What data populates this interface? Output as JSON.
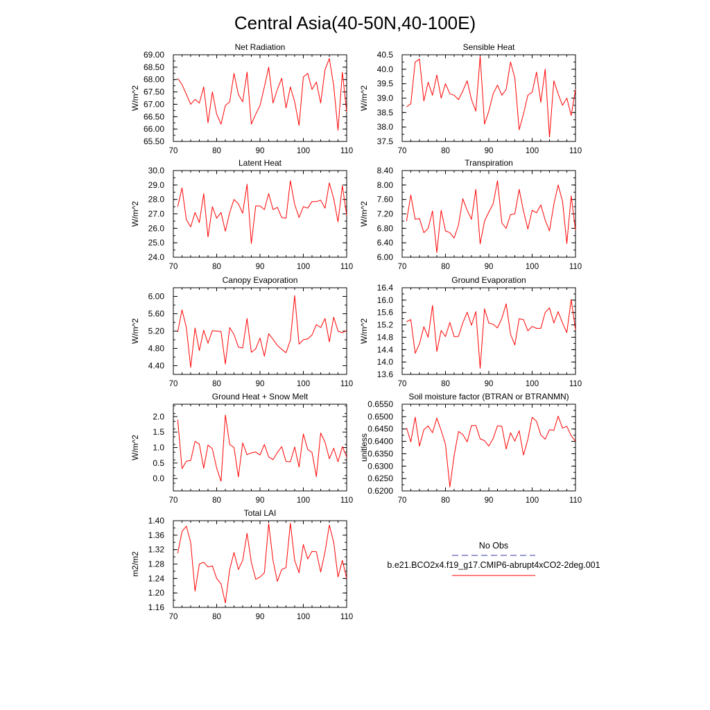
{
  "figure": {
    "title": "Central Asia(40-50N,40-100E)"
  },
  "legend": {
    "obs_label": "No Obs",
    "model_label": "b.e21.BCO2x4.f19_g17.CMIP6-abrupt4xCO2-2deg.001",
    "obs_color": "#3030a0",
    "model_color": "#ff0000"
  },
  "chart_data": [
    {
      "type": "line",
      "title": "Net Radiation",
      "ylabel": "W/m^2",
      "xlim": [
        70,
        110
      ],
      "ylim": [
        65.5,
        69.0
      ],
      "xticks": [
        70,
        80,
        90,
        100,
        110
      ],
      "xtick_labels": [
        "70",
        "80",
        "90",
        "100",
        "110"
      ],
      "yticks": [
        65.5,
        66.0,
        66.5,
        67.0,
        67.5,
        68.0,
        68.5,
        69.0
      ],
      "ytick_labels": [
        "65.50",
        "66.00",
        "66.50",
        "67.00",
        "67.50",
        "68.00",
        "68.50",
        "69.00"
      ],
      "series": [
        {
          "color": "#ff0000",
          "x": [
            71,
            72,
            73,
            74,
            75,
            76,
            77,
            78,
            79,
            80,
            81,
            82,
            83,
            84,
            85,
            86,
            87,
            88,
            89,
            90,
            91,
            92,
            93,
            94,
            95,
            96,
            97,
            98,
            99,
            100,
            101,
            102,
            103,
            104,
            105,
            106,
            107,
            108,
            109,
            110
          ],
          "y": [
            68.05,
            67.8,
            67.4,
            67.0,
            67.2,
            67.05,
            67.7,
            66.25,
            67.5,
            66.6,
            66.2,
            66.95,
            67.1,
            68.25,
            67.4,
            67.1,
            68.3,
            66.2,
            66.6,
            66.95,
            67.7,
            68.5,
            67.05,
            67.6,
            68.05,
            66.85,
            67.7,
            67.1,
            66.15,
            68.1,
            68.25,
            67.6,
            67.9,
            67.05,
            68.4,
            68.85,
            67.75,
            65.95,
            68.3,
            66.7
          ]
        }
      ]
    },
    {
      "type": "line",
      "title": "Sensible Heat",
      "ylabel": "W/m^2",
      "xlim": [
        70,
        110
      ],
      "ylim": [
        37.5,
        40.5
      ],
      "xticks": [
        70,
        80,
        90,
        100,
        110
      ],
      "xtick_labels": [
        "70",
        "80",
        "90",
        "100",
        "110"
      ],
      "yticks": [
        37.5,
        38.0,
        38.5,
        39.0,
        39.5,
        40.0,
        40.5
      ],
      "ytick_labels": [
        "37.5",
        "38.0",
        "38.5",
        "39.0",
        "39.5",
        "40.0",
        "40.5"
      ],
      "series": [
        {
          "color": "#ff0000",
          "x": [
            71,
            72,
            73,
            74,
            75,
            76,
            77,
            78,
            79,
            80,
            81,
            82,
            83,
            84,
            85,
            86,
            87,
            88,
            89,
            90,
            91,
            92,
            93,
            94,
            95,
            96,
            97,
            98,
            99,
            100,
            101,
            102,
            103,
            104,
            105,
            106,
            107,
            108,
            109,
            110
          ],
          "y": [
            38.7,
            38.8,
            40.25,
            40.35,
            38.9,
            39.55,
            39.1,
            39.8,
            39.0,
            39.5,
            39.15,
            39.1,
            38.95,
            39.25,
            39.6,
            38.95,
            38.55,
            40.45,
            38.1,
            38.55,
            39.15,
            39.45,
            39.1,
            39.3,
            40.25,
            39.7,
            37.9,
            38.45,
            39.1,
            39.2,
            39.9,
            38.85,
            40.0,
            37.65,
            39.6,
            39.15,
            38.75,
            39.0,
            38.4,
            39.3
          ]
        }
      ]
    },
    {
      "type": "line",
      "title": "Latent Heat",
      "ylabel": "W/m^2",
      "xlim": [
        70,
        110
      ],
      "ylim": [
        24.0,
        30.0
      ],
      "xticks": [
        70,
        80,
        90,
        100,
        110
      ],
      "xtick_labels": [
        "70",
        "80",
        "90",
        "100",
        "110"
      ],
      "yticks": [
        24.0,
        25.0,
        26.0,
        27.0,
        28.0,
        29.0,
        30.0
      ],
      "ytick_labels": [
        "24.0",
        "25.0",
        "26.0",
        "27.0",
        "28.0",
        "29.0",
        "30.0"
      ],
      "series": [
        {
          "color": "#ff0000",
          "x": [
            71,
            72,
            73,
            74,
            75,
            76,
            77,
            78,
            79,
            80,
            81,
            82,
            83,
            84,
            85,
            86,
            87,
            88,
            89,
            90,
            91,
            92,
            93,
            94,
            95,
            96,
            97,
            98,
            99,
            100,
            101,
            102,
            103,
            104,
            105,
            106,
            107,
            108,
            109,
            110
          ],
          "y": [
            27.5,
            28.8,
            26.6,
            26.1,
            27.1,
            26.4,
            28.4,
            25.4,
            27.5,
            26.7,
            27.1,
            25.8,
            27.1,
            28.0,
            27.7,
            27.05,
            29.05,
            24.95,
            27.55,
            27.55,
            27.3,
            28.4,
            27.3,
            27.45,
            26.75,
            26.7,
            29.3,
            27.65,
            26.75,
            27.5,
            27.4,
            27.85,
            27.85,
            27.95,
            27.4,
            29.15,
            28.05,
            26.45,
            28.95,
            26.9
          ]
        }
      ]
    },
    {
      "type": "line",
      "title": "Transpiration",
      "ylabel": "W/m^2",
      "xlim": [
        70,
        110
      ],
      "ylim": [
        6.0,
        8.4
      ],
      "xticks": [
        70,
        80,
        90,
        100,
        110
      ],
      "xtick_labels": [
        "70",
        "80",
        "90",
        "100",
        "110"
      ],
      "yticks": [
        6.0,
        6.4,
        6.8,
        7.2,
        7.6,
        8.0,
        8.4
      ],
      "ytick_labels": [
        "6.00",
        "6.40",
        "6.80",
        "7.20",
        "7.60",
        "8.00",
        "8.40"
      ],
      "series": [
        {
          "color": "#ff0000",
          "x": [
            71,
            72,
            73,
            74,
            75,
            76,
            77,
            78,
            79,
            80,
            81,
            82,
            83,
            84,
            85,
            86,
            87,
            88,
            89,
            90,
            91,
            92,
            93,
            94,
            95,
            96,
            97,
            98,
            99,
            100,
            101,
            102,
            103,
            104,
            105,
            106,
            107,
            108,
            109,
            110
          ],
          "y": [
            7.0,
            7.72,
            7.05,
            7.07,
            6.68,
            6.8,
            7.28,
            6.13,
            7.3,
            6.73,
            6.68,
            6.53,
            6.9,
            7.62,
            7.3,
            7.05,
            7.88,
            6.37,
            7.0,
            7.25,
            7.48,
            8.12,
            6.95,
            6.8,
            7.18,
            7.2,
            7.88,
            7.28,
            6.78,
            7.3,
            7.23,
            7.45,
            7.03,
            6.73,
            7.47,
            8.0,
            7.55,
            6.38,
            7.7,
            6.75
          ]
        }
      ]
    },
    {
      "type": "line",
      "title": "Canopy Evaporation",
      "ylabel": "W/m^2",
      "xlim": [
        70,
        110
      ],
      "ylim": [
        4.2,
        6.2
      ],
      "xticks": [
        70,
        80,
        90,
        100,
        110
      ],
      "xtick_labels": [
        "70",
        "80",
        "90",
        "100",
        "110"
      ],
      "yticks": [
        4.4,
        4.8,
        5.2,
        5.6,
        6.0
      ],
      "ytick_labels": [
        "4.40",
        "4.80",
        "5.20",
        "5.60",
        "6.00"
      ],
      "series": [
        {
          "color": "#ff0000",
          "x": [
            71,
            72,
            73,
            74,
            75,
            76,
            77,
            78,
            79,
            80,
            81,
            82,
            83,
            84,
            85,
            86,
            87,
            88,
            89,
            90,
            91,
            92,
            93,
            94,
            95,
            96,
            97,
            98,
            99,
            100,
            101,
            102,
            103,
            104,
            105,
            106,
            107,
            108,
            109,
            110
          ],
          "y": [
            5.18,
            5.69,
            5.28,
            4.36,
            5.27,
            4.75,
            5.22,
            4.92,
            5.21,
            5.2,
            5.19,
            4.44,
            5.28,
            5.12,
            4.83,
            4.81,
            5.49,
            4.71,
            4.79,
            5.04,
            4.62,
            5.14,
            5.01,
            4.87,
            4.78,
            4.7,
            4.99,
            6.02,
            4.9,
            5.0,
            5.02,
            5.11,
            5.35,
            5.28,
            5.49,
            4.95,
            5.52,
            5.2,
            5.16,
            5.22
          ]
        }
      ]
    },
    {
      "type": "line",
      "title": "Ground Evaporation",
      "ylabel": "W/m^2",
      "xlim": [
        70,
        110
      ],
      "ylim": [
        13.6,
        16.4
      ],
      "xticks": [
        70,
        80,
        90,
        100,
        110
      ],
      "xtick_labels": [
        "70",
        "80",
        "90",
        "100",
        "110"
      ],
      "yticks": [
        13.6,
        14.0,
        14.4,
        14.8,
        15.2,
        15.6,
        16.0,
        16.4
      ],
      "ytick_labels": [
        "13.6",
        "14.0",
        "14.4",
        "14.8",
        "15.2",
        "15.6",
        "16.0",
        "16.4"
      ],
      "series": [
        {
          "color": "#ff0000",
          "x": [
            71,
            72,
            73,
            74,
            75,
            76,
            77,
            78,
            79,
            80,
            81,
            82,
            83,
            84,
            85,
            86,
            87,
            88,
            89,
            90,
            91,
            92,
            93,
            94,
            95,
            96,
            97,
            98,
            99,
            100,
            101,
            102,
            103,
            104,
            105,
            106,
            107,
            108,
            109,
            110
          ],
          "y": [
            15.3,
            15.37,
            14.28,
            14.59,
            15.14,
            14.8,
            15.83,
            14.34,
            15.02,
            14.82,
            15.28,
            14.82,
            14.83,
            15.27,
            15.61,
            15.19,
            15.63,
            13.8,
            15.72,
            15.26,
            15.22,
            15.1,
            15.41,
            15.88,
            14.9,
            14.55,
            15.4,
            15.37,
            15.01,
            15.15,
            15.09,
            15.09,
            15.6,
            15.75,
            15.26,
            15.63,
            15.26,
            14.95,
            16.02,
            15.04
          ]
        }
      ]
    },
    {
      "type": "line",
      "title": "Ground Heat + Snow Melt",
      "ylabel": "W/m^2",
      "xlim": [
        70,
        110
      ],
      "ylim": [
        -0.4,
        2.4
      ],
      "xticks": [
        70,
        80,
        90,
        100,
        110
      ],
      "xtick_labels": [
        "70",
        "80",
        "90",
        "100",
        "110"
      ],
      "yticks": [
        0.0,
        0.5,
        1.0,
        1.5,
        2.0
      ],
      "ytick_labels": [
        "0.0",
        "0.5",
        "1.0",
        "1.5",
        "2.0"
      ],
      "series": [
        {
          "color": "#ff0000",
          "x": [
            71,
            72,
            73,
            74,
            75,
            76,
            77,
            78,
            79,
            80,
            81,
            82,
            83,
            84,
            85,
            86,
            87,
            88,
            89,
            90,
            91,
            92,
            93,
            94,
            95,
            96,
            97,
            98,
            99,
            100,
            101,
            102,
            103,
            104,
            105,
            106,
            107,
            108,
            109,
            110
          ],
          "y": [
            1.9,
            0.32,
            0.56,
            0.58,
            1.2,
            1.11,
            0.33,
            1.08,
            0.96,
            0.34,
            -0.09,
            2.05,
            1.1,
            1.0,
            0.05,
            1.15,
            0.77,
            0.83,
            0.86,
            0.76,
            1.1,
            0.7,
            0.61,
            0.84,
            1.03,
            0.55,
            0.54,
            1.02,
            0.37,
            1.44,
            0.94,
            0.84,
            0.06,
            1.47,
            1.17,
            0.64,
            0.98,
            0.54,
            1.03,
            0.69
          ]
        }
      ]
    },
    {
      "type": "line",
      "title": "Soil moisture factor (BTRAN or BTRANMN)",
      "ylabel": "unitless",
      "xlim": [
        70,
        110
      ],
      "ylim": [
        0.62,
        0.655
      ],
      "xticks": [
        70,
        80,
        90,
        100,
        110
      ],
      "xtick_labels": [
        "70",
        "80",
        "90",
        "100",
        "110"
      ],
      "yticks": [
        0.62,
        0.625,
        0.63,
        0.635,
        0.64,
        0.645,
        0.65,
        0.655
      ],
      "ytick_labels": [
        "0.6200",
        "0.6250",
        "0.6300",
        "0.6350",
        "0.6400",
        "0.6450",
        "0.6500",
        "0.6550"
      ],
      "series": [
        {
          "color": "#ff0000",
          "x": [
            71,
            72,
            73,
            74,
            75,
            76,
            77,
            78,
            79,
            80,
            81,
            82,
            83,
            84,
            85,
            86,
            87,
            88,
            89,
            90,
            91,
            92,
            93,
            94,
            95,
            96,
            97,
            98,
            99,
            100,
            101,
            102,
            103,
            104,
            105,
            106,
            107,
            108,
            109,
            110
          ],
          "y": [
            0.6455,
            0.6398,
            0.6498,
            0.6381,
            0.6447,
            0.6462,
            0.6435,
            0.6494,
            0.6444,
            0.6388,
            0.6216,
            0.6343,
            0.644,
            0.6428,
            0.6398,
            0.6464,
            0.6464,
            0.641,
            0.6403,
            0.6381,
            0.6412,
            0.6463,
            0.6461,
            0.6369,
            0.6435,
            0.6401,
            0.6443,
            0.6345,
            0.6408,
            0.6497,
            0.6481,
            0.6426,
            0.6409,
            0.6447,
            0.6445,
            0.6502,
            0.6453,
            0.6461,
            0.6423,
            0.6401
          ]
        }
      ]
    },
    {
      "type": "line",
      "title": "Total LAI",
      "ylabel": "m2/m2",
      "xlim": [
        70,
        110
      ],
      "ylim": [
        1.16,
        1.4
      ],
      "xticks": [
        70,
        80,
        90,
        100,
        110
      ],
      "xtick_labels": [
        "70",
        "80",
        "90",
        "100",
        "110"
      ],
      "yticks": [
        1.16,
        1.2,
        1.24,
        1.28,
        1.32,
        1.36,
        1.4
      ],
      "ytick_labels": [
        "1.16",
        "1.20",
        "1.24",
        "1.28",
        "1.32",
        "1.36",
        "1.40"
      ],
      "series": [
        {
          "color": "#ff0000",
          "x": [
            71,
            72,
            73,
            74,
            75,
            76,
            77,
            78,
            79,
            80,
            81,
            82,
            83,
            84,
            85,
            86,
            87,
            88,
            89,
            90,
            91,
            92,
            93,
            94,
            95,
            96,
            97,
            98,
            99,
            100,
            101,
            102,
            103,
            104,
            105,
            106,
            107,
            108,
            109,
            110
          ],
          "y": [
            1.31,
            1.37,
            1.385,
            1.34,
            1.205,
            1.28,
            1.285,
            1.272,
            1.275,
            1.24,
            1.225,
            1.172,
            1.265,
            1.312,
            1.265,
            1.29,
            1.365,
            1.285,
            1.238,
            1.244,
            1.256,
            1.392,
            1.29,
            1.232,
            1.265,
            1.27,
            1.393,
            1.29,
            1.256,
            1.334,
            1.294,
            1.315,
            1.314,
            1.258,
            1.314,
            1.388,
            1.34,
            1.244,
            1.29,
            1.24
          ]
        }
      ]
    }
  ]
}
